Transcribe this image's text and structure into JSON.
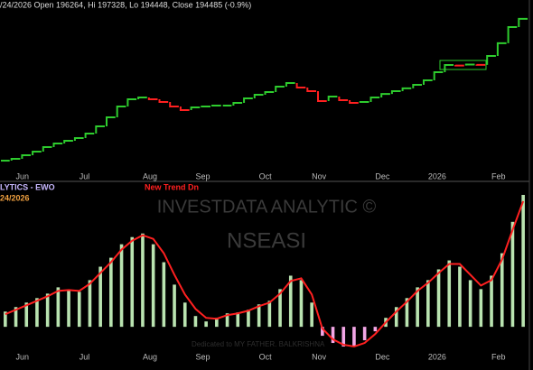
{
  "chart_data": [
    {
      "type": "step",
      "title": "/24/2026 Open 196264, Hi 197328, Lo 194448, Close 194485 (-0.9%)",
      "categories": [
        null,
        "Jun",
        null,
        null,
        null,
        null,
        null,
        "Jul",
        null,
        null,
        null,
        null,
        null,
        "Aug",
        null,
        null,
        null,
        null,
        "Sep",
        null,
        null,
        null,
        null,
        null,
        "Oct",
        null,
        null,
        null,
        null,
        "Nov",
        null,
        null,
        null,
        null,
        null,
        "Dec",
        null,
        null,
        null,
        null,
        "2026",
        null,
        null,
        null,
        null,
        null,
        "Feb",
        null,
        null,
        null
      ],
      "values": [
        97400,
        98650,
        101120,
        103600,
        106690,
        109160,
        111010,
        112870,
        115960,
        120900,
        127090,
        134500,
        139440,
        140680,
        139440,
        137590,
        134500,
        132030,
        133880,
        134500,
        135110,
        135110,
        136970,
        140060,
        142530,
        144380,
        148090,
        150560,
        147470,
        145000,
        138200,
        141300,
        138800,
        137000,
        137600,
        140700,
        143100,
        145000,
        146900,
        149300,
        152400,
        158000,
        162900,
        162500,
        163200,
        163000,
        169100,
        177800,
        188900,
        194485
      ],
      "up_color": "#2ecc2e",
      "down_color": "#ff2020",
      "ylim": [
        90000,
        200000
      ]
    },
    {
      "type": "bar",
      "title": "LYTICS - EWO",
      "subtitle": "24/2026",
      "annotations": [
        "New Trend Dn",
        "INVESTDATA ANALYTIC ©",
        "NSEASI",
        "Dedicated to MY FATHER. BALKRISHNA"
      ],
      "categories": [
        null,
        "Jun",
        null,
        null,
        null,
        null,
        null,
        "Jul",
        null,
        null,
        null,
        null,
        null,
        "Aug",
        null,
        null,
        null,
        null,
        "Sep",
        null,
        null,
        null,
        null,
        null,
        "Oct",
        null,
        null,
        null,
        null,
        "Nov",
        null,
        null,
        null,
        null,
        null,
        "Dec",
        null,
        null,
        null,
        null,
        "2026",
        null,
        null,
        null,
        null,
        null,
        "Feb",
        null,
        null,
        null
      ],
      "values": [
        17,
        22,
        27,
        32,
        37,
        44,
        40,
        39,
        52,
        67,
        77,
        92,
        100,
        104,
        92,
        72,
        47,
        27,
        12,
        6,
        10,
        15,
        16,
        19,
        25,
        29,
        42,
        57,
        52,
        27,
        -10,
        -18,
        -22,
        -22,
        -15,
        -5,
        10,
        22,
        32,
        44,
        52,
        64,
        74,
        67,
        52,
        42,
        57,
        82,
        117,
        147
      ],
      "positive_color": "#b9e3b0",
      "negative_color": "#f2a6e6",
      "signal": {
        "color": "#ff2020",
        "values": [
          14,
          19,
          24,
          29,
          34,
          40,
          41,
          40,
          48,
          60,
          72,
          86,
          96,
          102,
          98,
          82,
          58,
          36,
          20,
          10,
          9,
          13,
          15,
          18,
          23,
          27,
          37,
          51,
          54,
          36,
          -2,
          -14,
          -20,
          -22,
          -18,
          -8,
          5,
          17,
          28,
          40,
          49,
          60,
          70,
          70,
          58,
          46,
          52,
          75,
          108,
          140
        ]
      },
      "ylim": [
        -25,
        150
      ]
    }
  ]
}
